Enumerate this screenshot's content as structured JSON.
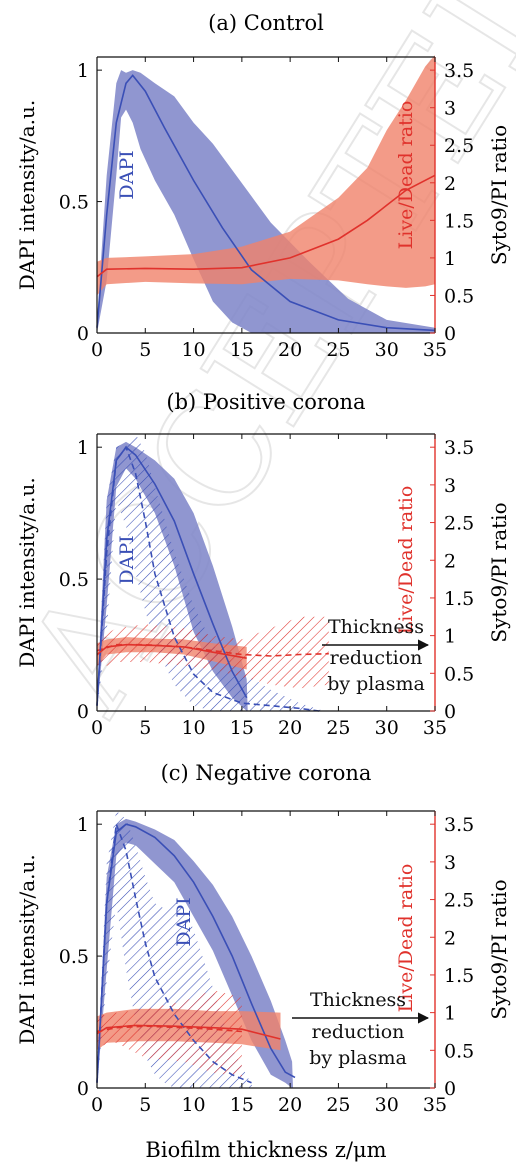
{
  "figure": {
    "xlabel": "Biofilm thickness z/μm",
    "watermark": "ACCEPTED MANUSCRIPT",
    "colors": {
      "dapi": "#3a4fb6",
      "dapi_band": "#7d84c8",
      "ratio": "#e0322c",
      "ratio_band": "#f0826a",
      "axis_right": "#e0322c"
    }
  },
  "chart_data": [
    {
      "type": "line",
      "title": "(a) Control",
      "xlabel": "",
      "ylabel": "DAPI intensity/a.u.",
      "y2label": "Syto9/PI ratio",
      "xlim": [
        0,
        35
      ],
      "ylim": [
        0,
        1.05
      ],
      "y2lim": [
        0,
        3.675
      ],
      "xticks": [
        "0",
        "5",
        "10",
        "15",
        "20",
        "25",
        "30",
        "35"
      ],
      "yticks": [
        "0",
        "0.5",
        "1"
      ],
      "y2ticks": [
        "0",
        "0.5",
        "1",
        "1.5",
        "2",
        "2.5",
        "3",
        "3.5"
      ],
      "labels": {
        "dapi": "DAPI",
        "ratio": "Live/Dead ratio"
      },
      "series": [
        {
          "kind": "dapi_mean",
          "x": [
            0,
            1,
            2,
            3,
            3.7,
            5,
            7,
            10,
            13,
            16,
            20,
            25,
            30,
            35
          ],
          "y": [
            0.02,
            0.45,
            0.8,
            0.95,
            0.98,
            0.92,
            0.78,
            0.58,
            0.4,
            0.24,
            0.12,
            0.05,
            0.02,
            0.01
          ]
        },
        {
          "kind": "dapi_band",
          "x": [
            0,
            1,
            2,
            2.5,
            3,
            3.7,
            4.5,
            6,
            8,
            10,
            12,
            14,
            16,
            18,
            22,
            26,
            30,
            35
          ],
          "upper": [
            0.05,
            0.6,
            0.95,
            1.0,
            0.99,
            1.0,
            0.99,
            0.95,
            0.9,
            0.8,
            0.72,
            0.62,
            0.52,
            0.42,
            0.27,
            0.13,
            0.05,
            0.02
          ],
          "lower": [
            0,
            0.2,
            0.6,
            0.82,
            0.85,
            0.8,
            0.7,
            0.58,
            0.45,
            0.28,
            0.12,
            0.04,
            0,
            0,
            0,
            0,
            0,
            0
          ]
        },
        {
          "kind": "ratio_mean",
          "x": [
            0,
            1,
            5,
            10,
            15,
            20,
            25,
            28,
            30,
            32,
            35
          ],
          "y": [
            0.75,
            0.85,
            0.86,
            0.85,
            0.87,
            1.0,
            1.25,
            1.5,
            1.7,
            1.9,
            2.1
          ]
        },
        {
          "kind": "ratio_band",
          "x": [
            0,
            1,
            5,
            10,
            15,
            20,
            25,
            28,
            30,
            32,
            34,
            35
          ],
          "upper": [
            0.95,
            1.0,
            1.02,
            1.05,
            1.15,
            1.35,
            1.8,
            2.2,
            2.7,
            3.1,
            3.55,
            3.7
          ],
          "lower": [
            0.5,
            0.65,
            0.68,
            0.66,
            0.65,
            0.72,
            0.7,
            0.65,
            0.62,
            0.6,
            0.62,
            0.65
          ]
        }
      ]
    },
    {
      "type": "line",
      "title": "(b) Positive corona",
      "xlabel": "",
      "ylabel": "DAPI intensity/a.u.",
      "y2label": "Syto9/PI ratio",
      "xlim": [
        0,
        35
      ],
      "ylim": [
        0,
        1.05
      ],
      "y2lim": [
        0,
        3.675
      ],
      "xticks": [
        "0",
        "5",
        "10",
        "15",
        "20",
        "25",
        "30",
        "35"
      ],
      "yticks": [
        "0",
        "0.5",
        "1"
      ],
      "y2ticks": [
        "0",
        "0.5",
        "1",
        "1.5",
        "2",
        "2.5",
        "3",
        "3.5"
      ],
      "labels": {
        "dapi": "DAPI",
        "ratio": "Live/Dead ratio",
        "arrow_line1": "Thickness",
        "arrow_line2": "reduction",
        "arrow_line3": "by plasma"
      },
      "series": [
        {
          "kind": "dapi_mean",
          "x": [
            0,
            1,
            2,
            3,
            4,
            6,
            8,
            10,
            12,
            14,
            15.5
          ],
          "y": [
            0.02,
            0.65,
            0.95,
            1.0,
            0.97,
            0.86,
            0.72,
            0.52,
            0.33,
            0.15,
            0.05
          ]
        },
        {
          "kind": "dapi_band",
          "x": [
            0,
            1,
            2,
            3,
            4,
            6,
            8,
            10,
            12,
            14,
            15.5,
            15.6
          ],
          "upper": [
            0.05,
            0.8,
            1.0,
            1.02,
            1.0,
            0.95,
            0.88,
            0.75,
            0.55,
            0.32,
            0.12,
            0.0
          ],
          "lower": [
            0,
            0.4,
            0.85,
            0.92,
            0.88,
            0.75,
            0.55,
            0.3,
            0.15,
            0.05,
            0.0,
            0.0
          ]
        },
        {
          "kind": "dapi_mean_dashed",
          "x": [
            0,
            1,
            2,
            3,
            4,
            5,
            6,
            8,
            10,
            12,
            15,
            18,
            21,
            23
          ],
          "y": [
            0.02,
            0.6,
            0.95,
            1.0,
            0.9,
            0.72,
            0.52,
            0.28,
            0.14,
            0.07,
            0.03,
            0.02,
            0.01,
            0.0
          ]
        },
        {
          "kind": "dapi_band_hatched",
          "x": [
            0,
            1,
            2,
            3,
            4,
            5,
            6,
            8,
            10,
            12,
            15,
            18,
            21,
            23.5
          ],
          "upper": [
            0.05,
            0.8,
            1.0,
            1.02,
            1.05,
            0.98,
            0.85,
            0.6,
            0.4,
            0.25,
            0.15,
            0.08,
            0.03,
            0.0
          ],
          "lower": [
            0,
            0.3,
            0.8,
            0.7,
            0.52,
            0.38,
            0.25,
            0.1,
            0.02,
            0,
            0,
            0,
            0,
            0
          ]
        },
        {
          "kind": "ratio_mean",
          "x": [
            0,
            1,
            3,
            6,
            9,
            12,
            15.5
          ],
          "y": [
            0.75,
            0.85,
            0.88,
            0.87,
            0.85,
            0.78,
            0.7
          ]
        },
        {
          "kind": "ratio_band",
          "x": [
            0,
            1,
            3,
            6,
            9,
            12,
            15.5
          ],
          "upper": [
            0.9,
            0.95,
            0.98,
            0.96,
            0.95,
            0.9,
            0.85
          ],
          "lower": [
            0.6,
            0.75,
            0.78,
            0.78,
            0.75,
            0.66,
            0.55
          ]
        },
        {
          "kind": "ratio_mean_dashed",
          "x": [
            0,
            2,
            5,
            9,
            12,
            15,
            18,
            21,
            24
          ],
          "y": [
            0.8,
            0.88,
            0.88,
            0.85,
            0.8,
            0.75,
            0.73,
            0.75,
            0.76
          ]
        },
        {
          "kind": "ratio_band_hatched",
          "x": [
            0,
            2,
            5,
            9,
            12,
            15,
            18,
            21,
            24
          ],
          "upper": [
            0.95,
            1.1,
            1.15,
            1.1,
            1.0,
            0.95,
            1.1,
            1.25,
            1.25
          ],
          "lower": [
            0.55,
            0.65,
            0.65,
            0.6,
            0.55,
            0.45,
            0.35,
            0.3,
            0.35
          ]
        }
      ]
    },
    {
      "type": "line",
      "title": "(c) Negative corona",
      "xlabel": "Biofilm thickness z/μm",
      "ylabel": "DAPI intensity/a.u.",
      "y2label": "Syto9/PI ratio",
      "xlim": [
        0,
        35
      ],
      "ylim": [
        0,
        1.05
      ],
      "y2lim": [
        0,
        3.675
      ],
      "xticks": [
        "0",
        "5",
        "10",
        "15",
        "20",
        "25",
        "30",
        "35"
      ],
      "yticks": [
        "0",
        "0.5",
        "1"
      ],
      "y2ticks": [
        "0",
        "0.5",
        "1",
        "1.5",
        "2",
        "2.5",
        "3",
        "3.5"
      ],
      "labels": {
        "dapi": "DAPI",
        "ratio": "Live/Dead ratio",
        "arrow_line1": "Thickness",
        "arrow_line2": "reduction",
        "arrow_line3": "by plasma"
      },
      "series": [
        {
          "kind": "dapi_mean",
          "x": [
            0,
            1,
            2,
            3,
            4,
            6,
            8,
            10,
            12,
            14,
            16,
            18,
            19.5,
            20.5
          ],
          "y": [
            0.02,
            0.7,
            0.97,
            1.0,
            0.99,
            0.95,
            0.88,
            0.78,
            0.65,
            0.5,
            0.32,
            0.15,
            0.06,
            0.04
          ]
        },
        {
          "kind": "dapi_band",
          "x": [
            0,
            1,
            2,
            3,
            4,
            6,
            8,
            10,
            12,
            14,
            16,
            18,
            19.5,
            20.2,
            20.3
          ],
          "upper": [
            0.05,
            0.8,
            1.0,
            1.02,
            1.01,
            0.98,
            0.94,
            0.86,
            0.77,
            0.65,
            0.5,
            0.33,
            0.18,
            0.1,
            0.0
          ],
          "lower": [
            0,
            0.45,
            0.88,
            0.93,
            0.92,
            0.85,
            0.78,
            0.65,
            0.52,
            0.35,
            0.18,
            0.05,
            0.02,
            0.0,
            0.0
          ]
        },
        {
          "kind": "dapi_mean_dashed",
          "x": [
            0,
            1,
            2,
            3,
            4,
            5,
            6,
            8,
            10,
            12,
            14,
            16
          ],
          "y": [
            0.02,
            0.7,
            1.0,
            0.9,
            0.72,
            0.55,
            0.42,
            0.28,
            0.18,
            0.1,
            0.05,
            0.02
          ]
        },
        {
          "kind": "dapi_band_hatched",
          "x": [
            0,
            1,
            2,
            3,
            4,
            5,
            6,
            7,
            8,
            9,
            10,
            12,
            14,
            16.2
          ],
          "upper": [
            0.05,
            0.85,
            1.05,
            1.02,
            0.92,
            0.8,
            0.7,
            0.68,
            0.72,
            0.68,
            0.6,
            0.38,
            0.15,
            0.0
          ],
          "lower": [
            0,
            0.4,
            0.7,
            0.45,
            0.25,
            0.12,
            0.05,
            0.02,
            0,
            0,
            0,
            0,
            0,
            0
          ]
        },
        {
          "kind": "ratio_mean",
          "x": [
            0,
            1,
            4,
            8,
            12,
            15,
            19
          ],
          "y": [
            0.72,
            0.8,
            0.83,
            0.82,
            0.8,
            0.78,
            0.65
          ]
        },
        {
          "kind": "ratio_band",
          "x": [
            0,
            1,
            4,
            8,
            12,
            15,
            19
          ],
          "upper": [
            0.95,
            1.0,
            1.05,
            1.05,
            1.02,
            1.02,
            1.0
          ],
          "lower": [
            0.5,
            0.6,
            0.62,
            0.62,
            0.6,
            0.58,
            0.5
          ]
        },
        {
          "kind": "ratio_mean_dashed",
          "x": [
            0,
            2,
            5,
            9,
            12,
            15
          ],
          "y": [
            0.75,
            0.8,
            0.82,
            0.8,
            0.78,
            0.75
          ]
        },
        {
          "kind": "ratio_band_hatched",
          "x": [
            0,
            2,
            5,
            9,
            12,
            15
          ],
          "upper": [
            0.95,
            1.0,
            1.05,
            1.15,
            1.3,
            1.2
          ],
          "lower": [
            0.55,
            0.6,
            0.4,
            0.35,
            0.2,
            0.15
          ]
        }
      ]
    }
  ]
}
